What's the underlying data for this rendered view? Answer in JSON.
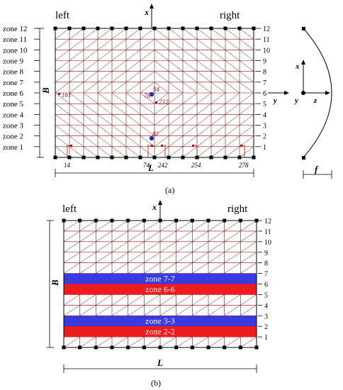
{
  "figure_a": {
    "label_left": "left",
    "label_right": "right",
    "axis_x": "x",
    "label_B": "B",
    "label_L": "L",
    "caption": "(a)",
    "zones_left": [
      "zone 12",
      "zone 11",
      "zone 10",
      "zone 9",
      "zone 8",
      "zone 7",
      "zone 6",
      "zone 5",
      "zone 4",
      "zone 3",
      "zone 2",
      "zone 1"
    ],
    "ticks_right": [
      "12",
      "11",
      "10",
      "9",
      "8",
      "7",
      "6",
      "5",
      "4",
      "3",
      "2",
      "1"
    ],
    "node_labels": [
      "161",
      "78",
      "94",
      "232",
      "81"
    ],
    "bottom_labels": [
      "14",
      "74",
      "242",
      "254",
      "278"
    ],
    "side_axes": {
      "x": "x",
      "y": "y",
      "z": "z",
      "y2": "y",
      "f": "f"
    }
  },
  "figure_b": {
    "label_left": "left",
    "label_right": "right",
    "axis_x": "x",
    "label_B": "B",
    "label_L": "L",
    "caption": "(b)",
    "ticks_right": [
      "12",
      "11",
      "10",
      "9",
      "8",
      "7",
      "6",
      "5",
      "4",
      "3",
      "2",
      "1"
    ],
    "bands": [
      {
        "label": "zone 7-7",
        "color": "#3a3ade"
      },
      {
        "label": "zone 6-6",
        "color": "#ee1c1c"
      },
      {
        "label": "zone 3-3",
        "color": "#3a3ade"
      },
      {
        "label": "zone 2-2",
        "color": "#ee1c1c"
      }
    ]
  },
  "colors": {
    "mesh_line": "#7a1010",
    "outline": "#000000"
  }
}
